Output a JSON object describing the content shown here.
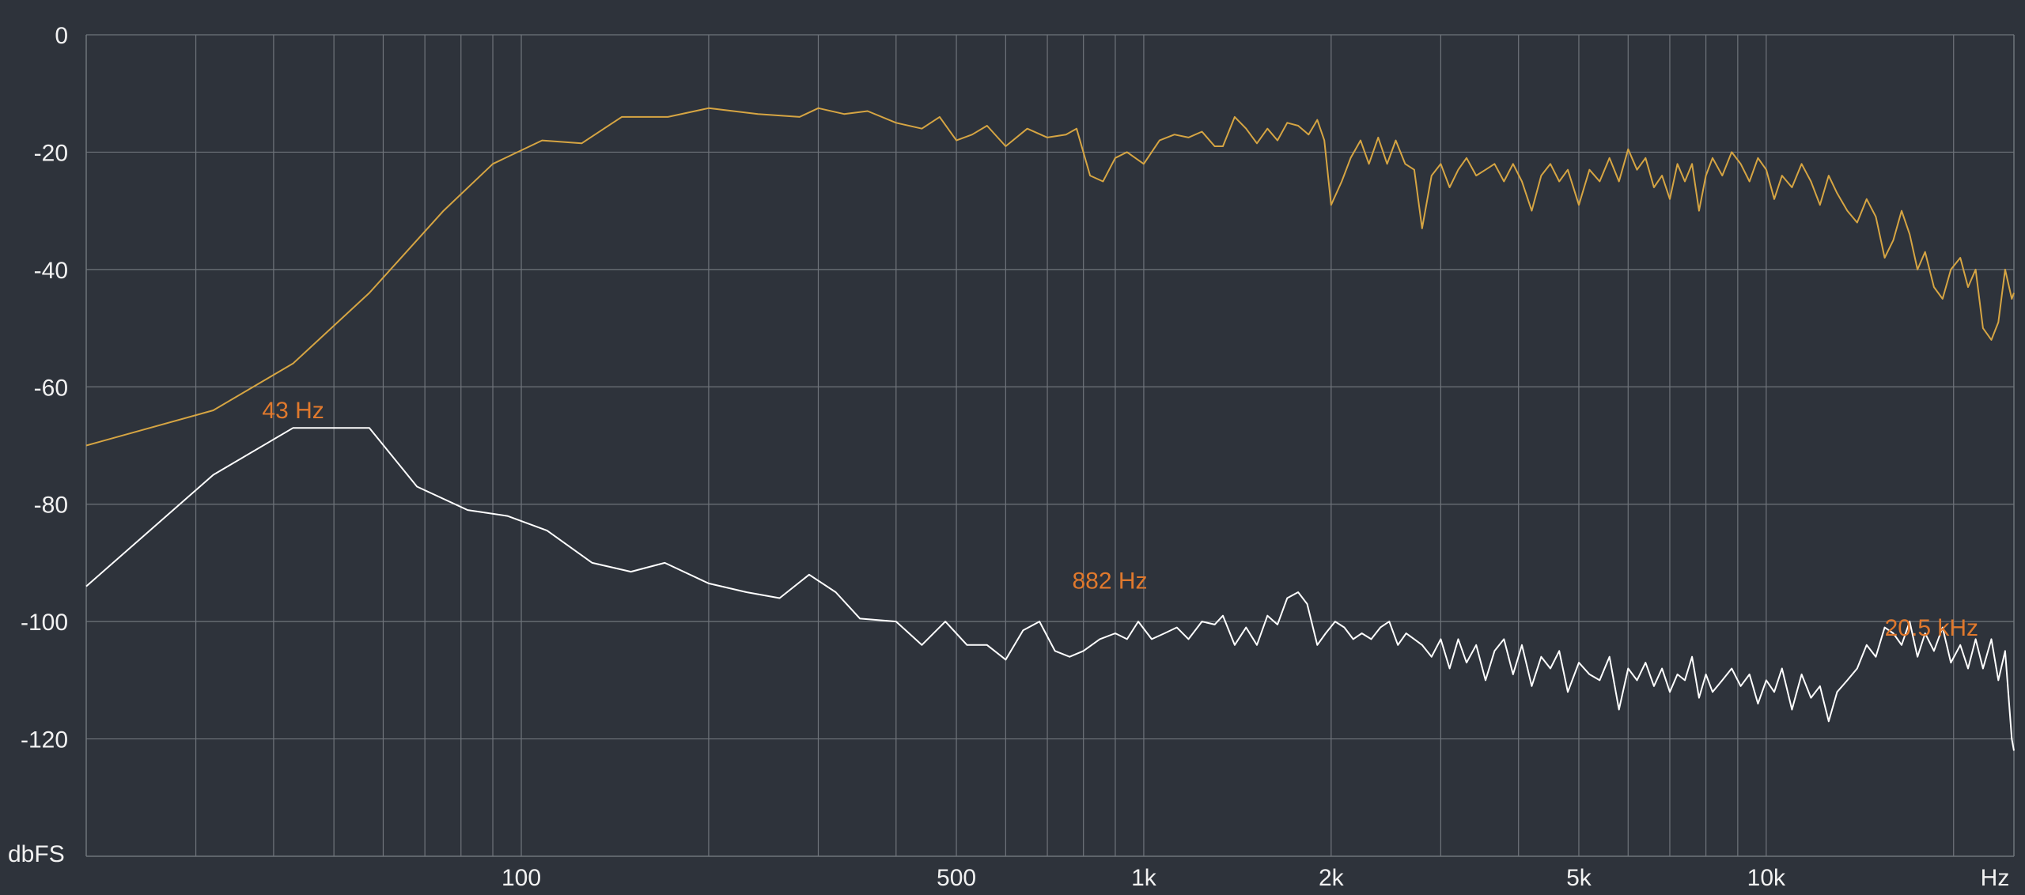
{
  "colors": {
    "background": "#2e333b",
    "grid": "#6f747b",
    "text": "#f2f2f2",
    "series_upper": "#d6a543",
    "series_lower": "#ffffff",
    "annotation": "#e0792d"
  },
  "chart_data": {
    "type": "line",
    "xscale": "log",
    "xlim": [
      20,
      25000
    ],
    "ylim": [
      -140,
      0
    ],
    "grid": true,
    "xlabel": "Hz",
    "ylabel": "dbFS",
    "x_ticks": [
      {
        "value": 100,
        "label": "100"
      },
      {
        "value": 500,
        "label": "500"
      },
      {
        "value": 1000,
        "label": "1k"
      },
      {
        "value": 2000,
        "label": "2k"
      },
      {
        "value": 5000,
        "label": "5k"
      },
      {
        "value": 10000,
        "label": "10k"
      }
    ],
    "y_ticks": [
      {
        "value": 0,
        "label": "0"
      },
      {
        "value": -20,
        "label": "-20"
      },
      {
        "value": -40,
        "label": "-40"
      },
      {
        "value": -60,
        "label": "-60"
      },
      {
        "value": -80,
        "label": "-80"
      },
      {
        "value": -100,
        "label": "-100"
      },
      {
        "value": -120,
        "label": "-120"
      }
    ],
    "x_gridlines": [
      30,
      40,
      50,
      60,
      70,
      80,
      90,
      100,
      200,
      300,
      400,
      500,
      600,
      700,
      800,
      900,
      1000,
      2000,
      3000,
      4000,
      5000,
      6000,
      7000,
      8000,
      9000,
      10000,
      20000
    ],
    "annotations": [
      {
        "label": "43 Hz",
        "x": 43,
        "y": -67
      },
      {
        "label": "882 Hz",
        "x": 882,
        "y": -96
      },
      {
        "label": "20.5  kHz",
        "x": 20500,
        "y": -104
      }
    ],
    "series": [
      {
        "points": [
          [
            20,
            -70
          ],
          [
            32,
            -64
          ],
          [
            43,
            -56
          ],
          [
            57,
            -44
          ],
          [
            75,
            -30
          ],
          [
            90,
            -22
          ],
          [
            108,
            -18
          ],
          [
            125,
            -18.5
          ],
          [
            145,
            -14
          ],
          [
            172,
            -14
          ],
          [
            200,
            -12.5
          ],
          [
            240,
            -13.5
          ],
          [
            280,
            -14
          ],
          [
            300,
            -12.5
          ],
          [
            330,
            -13.5
          ],
          [
            360,
            -13
          ],
          [
            400,
            -15
          ],
          [
            440,
            -16
          ],
          [
            470,
            -14
          ],
          [
            500,
            -18
          ],
          [
            530,
            -17
          ],
          [
            560,
            -15.5
          ],
          [
            600,
            -19
          ],
          [
            650,
            -16
          ],
          [
            700,
            -17.5
          ],
          [
            750,
            -17
          ],
          [
            780,
            -16
          ],
          [
            820,
            -24
          ],
          [
            860,
            -25
          ],
          [
            900,
            -21
          ],
          [
            940,
            -20
          ],
          [
            1000,
            -22
          ],
          [
            1060,
            -18
          ],
          [
            1120,
            -17
          ],
          [
            1180,
            -17.5
          ],
          [
            1240,
            -16.5
          ],
          [
            1300,
            -19
          ],
          [
            1340,
            -19
          ],
          [
            1400,
            -14
          ],
          [
            1460,
            -16
          ],
          [
            1520,
            -18.5
          ],
          [
            1580,
            -16
          ],
          [
            1640,
            -18
          ],
          [
            1700,
            -15
          ],
          [
            1770,
            -15.5
          ],
          [
            1840,
            -17
          ],
          [
            1900,
            -14.5
          ],
          [
            1950,
            -18
          ],
          [
            2000,
            -29
          ],
          [
            2080,
            -25
          ],
          [
            2150,
            -21
          ],
          [
            2230,
            -18
          ],
          [
            2300,
            -22
          ],
          [
            2380,
            -17.5
          ],
          [
            2460,
            -22
          ],
          [
            2540,
            -18
          ],
          [
            2630,
            -22
          ],
          [
            2720,
            -23
          ],
          [
            2800,
            -33
          ],
          [
            2900,
            -24
          ],
          [
            3000,
            -22
          ],
          [
            3100,
            -26
          ],
          [
            3200,
            -23
          ],
          [
            3300,
            -21
          ],
          [
            3420,
            -24
          ],
          [
            3540,
            -23
          ],
          [
            3660,
            -22
          ],
          [
            3790,
            -25
          ],
          [
            3920,
            -22
          ],
          [
            4050,
            -25
          ],
          [
            4200,
            -30
          ],
          [
            4350,
            -24
          ],
          [
            4500,
            -22
          ],
          [
            4650,
            -25
          ],
          [
            4800,
            -23
          ],
          [
            5000,
            -29
          ],
          [
            5200,
            -23
          ],
          [
            5400,
            -25
          ],
          [
            5600,
            -21
          ],
          [
            5800,
            -25
          ],
          [
            6000,
            -19.5
          ],
          [
            6200,
            -23
          ],
          [
            6400,
            -21
          ],
          [
            6600,
            -26
          ],
          [
            6800,
            -24
          ],
          [
            7000,
            -28
          ],
          [
            7200,
            -22
          ],
          [
            7400,
            -25
          ],
          [
            7600,
            -22
          ],
          [
            7800,
            -30
          ],
          [
            8000,
            -24
          ],
          [
            8200,
            -21
          ],
          [
            8500,
            -24
          ],
          [
            8800,
            -20
          ],
          [
            9100,
            -22
          ],
          [
            9400,
            -25
          ],
          [
            9700,
            -21
          ],
          [
            10000,
            -23
          ],
          [
            10300,
            -28
          ],
          [
            10600,
            -24
          ],
          [
            11000,
            -26
          ],
          [
            11400,
            -22
          ],
          [
            11800,
            -25
          ],
          [
            12200,
            -29
          ],
          [
            12600,
            -24
          ],
          [
            13000,
            -27
          ],
          [
            13500,
            -30
          ],
          [
            14000,
            -32
          ],
          [
            14500,
            -28
          ],
          [
            15000,
            -31
          ],
          [
            15500,
            -38
          ],
          [
            16000,
            -35
          ],
          [
            16500,
            -30
          ],
          [
            17000,
            -34
          ],
          [
            17500,
            -40
          ],
          [
            18000,
            -37
          ],
          [
            18600,
            -43
          ],
          [
            19200,
            -45
          ],
          [
            19800,
            -40
          ],
          [
            20500,
            -38
          ],
          [
            21100,
            -43
          ],
          [
            21700,
            -40
          ],
          [
            22300,
            -50
          ],
          [
            23000,
            -52
          ],
          [
            23600,
            -49
          ],
          [
            24200,
            -40
          ],
          [
            24800,
            -45
          ],
          [
            25000,
            -44
          ]
        ]
      },
      {
        "points": [
          [
            20,
            -94
          ],
          [
            32,
            -75
          ],
          [
            43,
            -67
          ],
          [
            50,
            -67
          ],
          [
            57,
            -67
          ],
          [
            68,
            -77
          ],
          [
            82,
            -81
          ],
          [
            95,
            -82
          ],
          [
            110,
            -84.5
          ],
          [
            130,
            -90
          ],
          [
            150,
            -91.5
          ],
          [
            170,
            -90
          ],
          [
            200,
            -93.5
          ],
          [
            230,
            -95
          ],
          [
            260,
            -96
          ],
          [
            290,
            -92
          ],
          [
            320,
            -95
          ],
          [
            350,
            -99.5
          ],
          [
            400,
            -100
          ],
          [
            440,
            -104
          ],
          [
            480,
            -100
          ],
          [
            520,
            -104
          ],
          [
            560,
            -104
          ],
          [
            600,
            -106.5
          ],
          [
            640,
            -101.5
          ],
          [
            680,
            -100
          ],
          [
            720,
            -105
          ],
          [
            760,
            -106
          ],
          [
            800,
            -105
          ],
          [
            850,
            -103
          ],
          [
            900,
            -102
          ],
          [
            940,
            -103
          ],
          [
            980,
            -100
          ],
          [
            1030,
            -103
          ],
          [
            1080,
            -102
          ],
          [
            1130,
            -101
          ],
          [
            1180,
            -103
          ],
          [
            1240,
            -100
          ],
          [
            1300,
            -100.5
          ],
          [
            1340,
            -99
          ],
          [
            1400,
            -104
          ],
          [
            1460,
            -101
          ],
          [
            1520,
            -104
          ],
          [
            1580,
            -99
          ],
          [
            1640,
            -100.5
          ],
          [
            1700,
            -96
          ],
          [
            1770,
            -95
          ],
          [
            1830,
            -97
          ],
          [
            1900,
            -104
          ],
          [
            1960,
            -102
          ],
          [
            2030,
            -100
          ],
          [
            2100,
            -101
          ],
          [
            2170,
            -103
          ],
          [
            2240,
            -102
          ],
          [
            2320,
            -103
          ],
          [
            2400,
            -101
          ],
          [
            2480,
            -100
          ],
          [
            2560,
            -104
          ],
          [
            2640,
            -102
          ],
          [
            2720,
            -103
          ],
          [
            2800,
            -104
          ],
          [
            2900,
            -106
          ],
          [
            3000,
            -103
          ],
          [
            3100,
            -108
          ],
          [
            3200,
            -103
          ],
          [
            3300,
            -107
          ],
          [
            3420,
            -104
          ],
          [
            3540,
            -110
          ],
          [
            3660,
            -105
          ],
          [
            3790,
            -103
          ],
          [
            3920,
            -109
          ],
          [
            4050,
            -104
          ],
          [
            4200,
            -111
          ],
          [
            4350,
            -106
          ],
          [
            4500,
            -108
          ],
          [
            4650,
            -105
          ],
          [
            4800,
            -112
          ],
          [
            5000,
            -107
          ],
          [
            5200,
            -109
          ],
          [
            5400,
            -110
          ],
          [
            5600,
            -106
          ],
          [
            5800,
            -115
          ],
          [
            6000,
            -108
          ],
          [
            6200,
            -110
          ],
          [
            6400,
            -107
          ],
          [
            6600,
            -111
          ],
          [
            6800,
            -108
          ],
          [
            7000,
            -112
          ],
          [
            7200,
            -109
          ],
          [
            7400,
            -110
          ],
          [
            7600,
            -106
          ],
          [
            7800,
            -113
          ],
          [
            8000,
            -109
          ],
          [
            8200,
            -112
          ],
          [
            8500,
            -110
          ],
          [
            8800,
            -108
          ],
          [
            9100,
            -111
          ],
          [
            9400,
            -109
          ],
          [
            9700,
            -114
          ],
          [
            10000,
            -110
          ],
          [
            10300,
            -112
          ],
          [
            10600,
            -108
          ],
          [
            11000,
            -115
          ],
          [
            11400,
            -109
          ],
          [
            11800,
            -113
          ],
          [
            12200,
            -111
          ],
          [
            12600,
            -117
          ],
          [
            13000,
            -112
          ],
          [
            13500,
            -110
          ],
          [
            14000,
            -108
          ],
          [
            14500,
            -104
          ],
          [
            15000,
            -106
          ],
          [
            15500,
            -101
          ],
          [
            16000,
            -102
          ],
          [
            16500,
            -104
          ],
          [
            17000,
            -100
          ],
          [
            17500,
            -106
          ],
          [
            18000,
            -102
          ],
          [
            18600,
            -105
          ],
          [
            19200,
            -101
          ],
          [
            19800,
            -107
          ],
          [
            20500,
            -104
          ],
          [
            21100,
            -108
          ],
          [
            21700,
            -103
          ],
          [
            22300,
            -108
          ],
          [
            23000,
            -103
          ],
          [
            23600,
            -110
          ],
          [
            24200,
            -105
          ],
          [
            24800,
            -120
          ],
          [
            25000,
            -122
          ]
        ]
      }
    ]
  }
}
